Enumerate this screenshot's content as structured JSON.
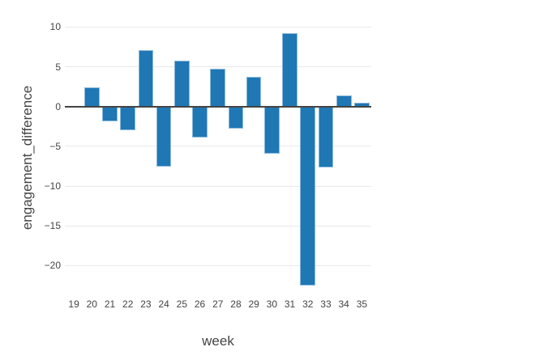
{
  "chart_data": {
    "type": "bar",
    "title": "",
    "xlabel": "week",
    "ylabel": "engagement_difference",
    "categories": [
      "19",
      "20",
      "21",
      "22",
      "23",
      "24",
      "25",
      "26",
      "27",
      "28",
      "29",
      "30",
      "31",
      "32",
      "33",
      "34",
      "35"
    ],
    "values": [
      0,
      2.4,
      -1.9,
      -3.0,
      7.1,
      -7.6,
      5.8,
      -3.9,
      4.7,
      -2.8,
      3.7,
      -5.9,
      9.2,
      -22.5,
      -7.7,
      1.4,
      0.5
    ],
    "ytick_labels": [
      "10",
      "5",
      "0",
      "−5",
      "−10",
      "−15",
      "−20"
    ],
    "ytick_values": [
      10,
      5,
      0,
      -5,
      -10,
      -15,
      -20
    ],
    "ylim": [
      -23.73,
      10.85
    ],
    "grid": true,
    "legend_position": "none",
    "colors": {
      "bar_fill": "#1f77b4",
      "bar_edge": "#8ab9dc",
      "gridline": "#e9e9e9",
      "zeroline": "#444444",
      "tick_text": "#444444",
      "axis_title_text": "#444444",
      "background": "#ffffff"
    }
  }
}
